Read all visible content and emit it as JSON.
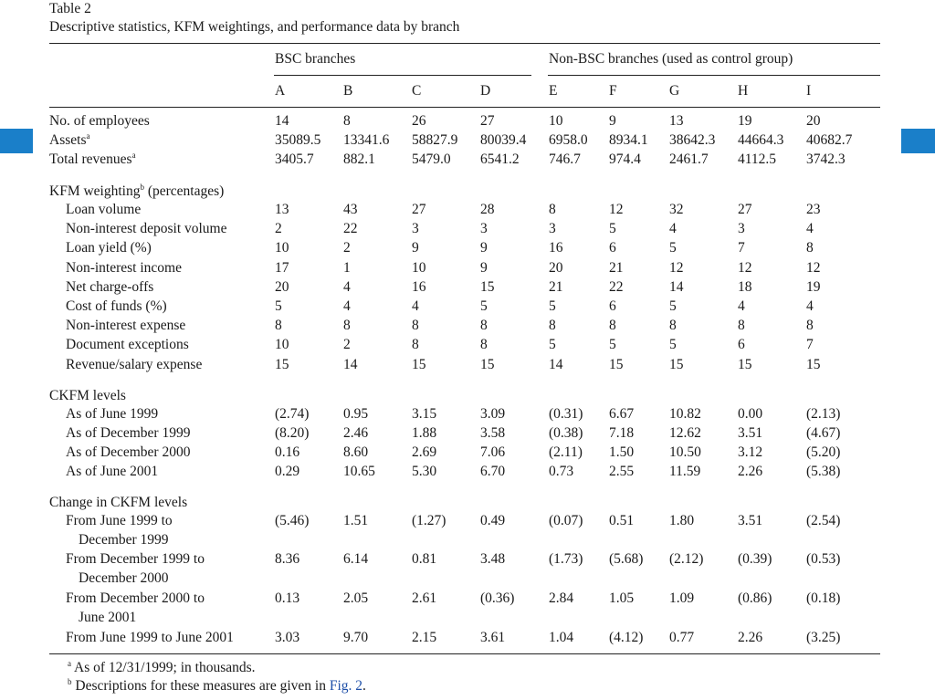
{
  "table": {
    "label": "Table 2",
    "caption": "Descriptive statistics, KFM weightings, and performance data by branch",
    "group_headers": [
      "BSC branches",
      "Non-BSC branches (used as control group)"
    ],
    "columns": [
      "A",
      "B",
      "C",
      "D",
      "E",
      "F",
      "G",
      "H",
      "I"
    ],
    "rows": [
      {
        "label": "No. of employees",
        "indent": false,
        "values": [
          "14",
          "8",
          "26",
          "27",
          "10",
          "9",
          "13",
          "19",
          "20"
        ]
      },
      {
        "label": "Assets",
        "sup": "a",
        "indent": false,
        "values": [
          "35089.5",
          "13341.6",
          "58827.9",
          "80039.4",
          "6958.0",
          "8934.1",
          "38642.3",
          "44664.3",
          "40682.7"
        ]
      },
      {
        "label": "Total revenues",
        "sup": "a",
        "indent": false,
        "values": [
          "3405.7",
          "882.1",
          "5479.0",
          "6541.2",
          "746.7",
          "974.4",
          "2461.7",
          "4112.5",
          "3742.3"
        ]
      },
      {
        "label": "KFM weighting",
        "sup": "b",
        "suffix": " (percentages)",
        "indent": false,
        "values": []
      },
      {
        "label": "Loan volume",
        "indent": true,
        "values": [
          "13",
          "43",
          "27",
          "28",
          "8",
          "12",
          "32",
          "27",
          "23"
        ]
      },
      {
        "label": "Non-interest deposit volume",
        "indent": true,
        "values": [
          "2",
          "22",
          "3",
          "3",
          "3",
          "5",
          "4",
          "3",
          "4"
        ]
      },
      {
        "label": "Loan yield (%)",
        "indent": true,
        "values": [
          "10",
          "2",
          "9",
          "9",
          "16",
          "6",
          "5",
          "7",
          "8"
        ]
      },
      {
        "label": "Non-interest income",
        "indent": true,
        "values": [
          "17",
          "1",
          "10",
          "9",
          "20",
          "21",
          "12",
          "12",
          "12"
        ]
      },
      {
        "label": "Net charge-offs",
        "indent": true,
        "values": [
          "20",
          "4",
          "16",
          "15",
          "21",
          "22",
          "14",
          "18",
          "19"
        ]
      },
      {
        "label": "Cost of funds (%)",
        "indent": true,
        "values": [
          "5",
          "4",
          "4",
          "5",
          "5",
          "6",
          "5",
          "4",
          "4"
        ]
      },
      {
        "label": "Non-interest expense",
        "indent": true,
        "values": [
          "8",
          "8",
          "8",
          "8",
          "8",
          "8",
          "8",
          "8",
          "8"
        ]
      },
      {
        "label": "Document exceptions",
        "indent": true,
        "values": [
          "10",
          "2",
          "8",
          "8",
          "5",
          "5",
          "5",
          "6",
          "7"
        ]
      },
      {
        "label": "Revenue/salary expense",
        "indent": true,
        "values": [
          "15",
          "14",
          "15",
          "15",
          "14",
          "15",
          "15",
          "15",
          "15"
        ]
      },
      {
        "label": "CKFM levels",
        "indent": false,
        "values": []
      },
      {
        "label": "As of June 1999",
        "indent": true,
        "values": [
          "(2.74)",
          "0.95",
          "3.15",
          "3.09",
          "(0.31)",
          "6.67",
          "10.82",
          "0.00",
          "(2.13)"
        ]
      },
      {
        "label": "As of December 1999",
        "indent": true,
        "values": [
          "(8.20)",
          "2.46",
          "1.88",
          "3.58",
          "(0.38)",
          "7.18",
          "12.62",
          "3.51",
          "(4.67)"
        ]
      },
      {
        "label": "As of December 2000",
        "indent": true,
        "values": [
          "0.16",
          "8.60",
          "2.69",
          "7.06",
          "(2.11)",
          "1.50",
          "10.50",
          "3.12",
          "(5.20)"
        ]
      },
      {
        "label": "As of June 2001",
        "indent": true,
        "values": [
          "0.29",
          "10.65",
          "5.30",
          "6.70",
          "0.73",
          "2.55",
          "11.59",
          "2.26",
          "(5.38)"
        ]
      },
      {
        "label": "Change in CKFM levels",
        "indent": false,
        "values": []
      },
      {
        "label": "From June 1999 to",
        "label2": "December 1999",
        "indent": true,
        "values": [
          "(5.46)",
          "1.51",
          "(1.27)",
          "0.49",
          "(0.07)",
          "0.51",
          "1.80",
          "3.51",
          "(2.54)"
        ]
      },
      {
        "label": "From December 1999 to",
        "label2": "December 2000",
        "indent": true,
        "values": [
          "8.36",
          "6.14",
          "0.81",
          "3.48",
          "(1.73)",
          "(5.68)",
          "(2.12)",
          "(0.39)",
          "(0.53)"
        ]
      },
      {
        "label": "From December 2000 to",
        "label2": "June 2001",
        "indent": true,
        "values": [
          "0.13",
          "2.05",
          "2.61",
          "(0.36)",
          "2.84",
          "1.05",
          "1.09",
          "(0.86)",
          "(0.18)"
        ]
      },
      {
        "label": "From June 1999 to June 2001",
        "indent": true,
        "values": [
          "3.03",
          "9.70",
          "2.15",
          "3.61",
          "1.04",
          "(4.12)",
          "0.77",
          "2.26",
          "(3.25)"
        ]
      }
    ],
    "footnotes": [
      {
        "mark": "a",
        "text": "As of 12/31/1999; in thousands."
      },
      {
        "mark": "b",
        "text": "Descriptions for these measures are given in ",
        "link": "Fig. 2",
        "after": "."
      }
    ]
  },
  "accent_color": "#1a7fc9"
}
